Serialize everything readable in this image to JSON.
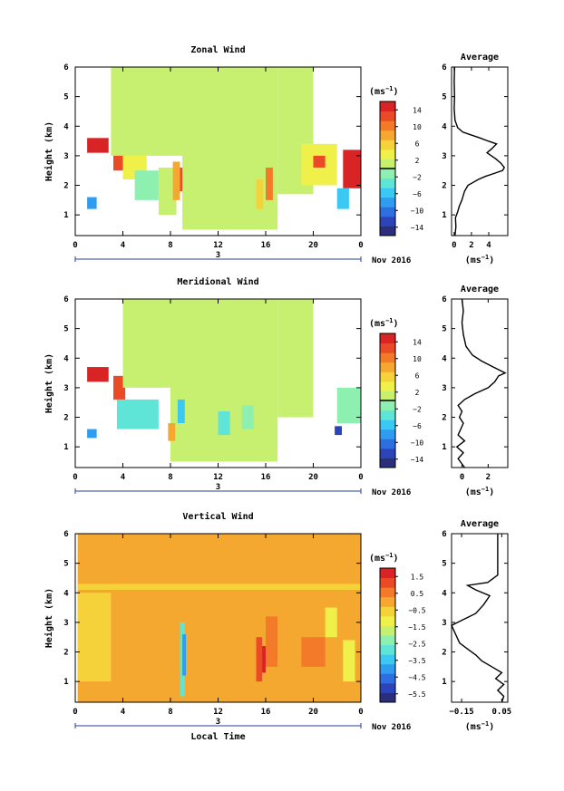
{
  "chart_data": [
    {
      "type": "heatmap",
      "title": "Zonal Wind",
      "ylabel": "Height (km)",
      "xlabel": "",
      "x_ticks": [
        "0",
        "4",
        "8",
        "12",
        "16",
        "20",
        "0"
      ],
      "y_ticks": [
        "1",
        "2",
        "3",
        "4",
        "5",
        "6"
      ],
      "xlim": [
        0,
        24
      ],
      "ylim": [
        0.3,
        6
      ],
      "date_day": "3",
      "date_label": "Nov 2016",
      "colorbar": {
        "unit_label": "(ms",
        "unit_sup": "−1",
        "unit_close": ")",
        "ticks": [
          "14",
          "10",
          "6",
          "2",
          "−2",
          "−6",
          "−10",
          "−14"
        ],
        "range": [
          -16,
          16
        ],
        "divider": 0
      },
      "profile": {
        "title": "Average",
        "x_ticks": [
          "0",
          "2",
          "4"
        ],
        "xlim": [
          -0.3,
          6.2
        ],
        "y_ticks": [
          "1",
          "2",
          "3",
          "4",
          "5",
          "6"
        ],
        "xunit": "(ms",
        "xunit_sup": "−1",
        "xunit_close": ")",
        "points": [
          [
            0.1,
            0.3
          ],
          [
            0.2,
            0.6
          ],
          [
            0.15,
            0.9
          ],
          [
            0.4,
            1.1
          ],
          [
            0.6,
            1.3
          ],
          [
            0.9,
            1.5
          ],
          [
            1.2,
            1.8
          ],
          [
            1.6,
            2.0
          ],
          [
            2.2,
            2.1
          ],
          [
            2.8,
            2.2
          ],
          [
            3.6,
            2.3
          ],
          [
            4.6,
            2.4
          ],
          [
            5.6,
            2.5
          ],
          [
            5.8,
            2.6
          ],
          [
            5.4,
            2.75
          ],
          [
            4.8,
            2.9
          ],
          [
            4.3,
            3.0
          ],
          [
            3.8,
            3.1
          ],
          [
            4.4,
            3.25
          ],
          [
            4.9,
            3.4
          ],
          [
            3.9,
            3.5
          ],
          [
            3.0,
            3.6
          ],
          [
            2.0,
            3.7
          ],
          [
            1.0,
            3.8
          ],
          [
            0.4,
            3.95
          ],
          [
            0.1,
            4.2
          ],
          [
            0.0,
            4.6
          ],
          [
            0.05,
            5.0
          ],
          [
            0.0,
            5.5
          ],
          [
            0.05,
            6.0
          ]
        ]
      },
      "cells": [
        {
          "x0": 1,
          "x1": 2.8,
          "y0": 3.1,
          "y1": 3.6,
          "v": 14
        },
        {
          "x0": 3.2,
          "x1": 4.2,
          "y0": 2.5,
          "y1": 3.4,
          "v": 12
        },
        {
          "x0": 4,
          "x1": 6,
          "y0": 2.2,
          "y1": 3.0,
          "v": 3
        },
        {
          "x0": 5,
          "x1": 7,
          "y0": 1.5,
          "y1": 2.5,
          "v": -1
        },
        {
          "x0": 7,
          "x1": 8.5,
          "y0": 1.0,
          "y1": 2.6,
          "v": 1
        },
        {
          "x0": 8.2,
          "x1": 8.8,
          "y0": 1.5,
          "y1": 2.8,
          "v": 9
        },
        {
          "x0": 8.8,
          "x1": 9.3,
          "y0": 1.8,
          "y1": 2.6,
          "v": 13
        },
        {
          "x0": 3,
          "x1": 12,
          "y0": 3.0,
          "y1": 6.0,
          "v": 0
        },
        {
          "x0": 9,
          "x1": 17,
          "y0": 0.5,
          "y1": 6.0,
          "v": 0
        },
        {
          "x0": 17,
          "x1": 20,
          "y0": 1.7,
          "y1": 6.0,
          "v": 0
        },
        {
          "x0": 15.2,
          "x1": 15.8,
          "y0": 1.2,
          "y1": 2.2,
          "v": 6
        },
        {
          "x0": 16,
          "x1": 16.6,
          "y0": 1.5,
          "y1": 2.6,
          "v": 11
        },
        {
          "x0": 1,
          "x1": 1.8,
          "y0": 1.2,
          "y1": 1.6,
          "v": -7
        },
        {
          "x0": 22.5,
          "x1": 24,
          "y0": 1.9,
          "y1": 3.2,
          "v": 14
        },
        {
          "x0": 22,
          "x1": 23,
          "y0": 1.2,
          "y1": 1.9,
          "v": -6
        },
        {
          "x0": 19,
          "x1": 22,
          "y0": 2.0,
          "y1": 3.4,
          "v": 4
        },
        {
          "x0": 20,
          "x1": 21,
          "y0": 2.6,
          "y1": 3.0,
          "v": 13
        }
      ]
    },
    {
      "type": "heatmap",
      "title": "Meridional Wind",
      "ylabel": "Height (km)",
      "xlabel": "",
      "x_ticks": [
        "0",
        "4",
        "8",
        "12",
        "16",
        "20",
        "0"
      ],
      "y_ticks": [
        "1",
        "2",
        "3",
        "4",
        "5",
        "6"
      ],
      "xlim": [
        0,
        24
      ],
      "ylim": [
        0.3,
        6
      ],
      "date_day": "3",
      "date_label": "Nov 2016",
      "colorbar": {
        "unit_label": "(ms",
        "unit_sup": "−1",
        "unit_close": ")",
        "ticks": [
          "14",
          "10",
          "6",
          "2",
          "−2",
          "−6",
          "−10",
          "−14"
        ],
        "range": [
          -16,
          16
        ],
        "divider": 0
      },
      "profile": {
        "title": "Average",
        "x_ticks": [
          "0",
          "2"
        ],
        "xlim": [
          -0.8,
          3.5
        ],
        "y_ticks": [
          "1",
          "2",
          "3",
          "4",
          "5",
          "6"
        ],
        "xunit": "(ms",
        "xunit_sup": "−1",
        "xunit_close": ")",
        "points": [
          [
            0.2,
            0.3
          ],
          [
            -0.3,
            0.6
          ],
          [
            0.1,
            0.8
          ],
          [
            -0.4,
            1.0
          ],
          [
            0.2,
            1.2
          ],
          [
            -0.3,
            1.4
          ],
          [
            -0.1,
            1.6
          ],
          [
            0.1,
            1.8
          ],
          [
            -0.2,
            2.0
          ],
          [
            0.0,
            2.2
          ],
          [
            -0.3,
            2.4
          ],
          [
            0.2,
            2.6
          ],
          [
            1.0,
            2.8
          ],
          [
            2.0,
            3.0
          ],
          [
            2.5,
            3.2
          ],
          [
            2.8,
            3.4
          ],
          [
            3.3,
            3.5
          ],
          [
            2.4,
            3.7
          ],
          [
            1.5,
            3.9
          ],
          [
            0.8,
            4.1
          ],
          [
            0.3,
            4.4
          ],
          [
            0.1,
            4.8
          ],
          [
            0.0,
            5.2
          ],
          [
            0.1,
            5.6
          ],
          [
            0.0,
            6.0
          ]
        ]
      },
      "cells": [
        {
          "x0": 1,
          "x1": 2.8,
          "y0": 3.2,
          "y1": 3.7,
          "v": 14
        },
        {
          "x0": 3.2,
          "x1": 4.2,
          "y0": 2.6,
          "y1": 3.4,
          "v": 12
        },
        {
          "x0": 3.5,
          "x1": 7,
          "y0": 1.6,
          "y1": 2.6,
          "v": -3
        },
        {
          "x0": 4,
          "x1": 12,
          "y0": 3.0,
          "y1": 6.0,
          "v": 0
        },
        {
          "x0": 8,
          "x1": 17,
          "y0": 0.5,
          "y1": 6.0,
          "v": 0
        },
        {
          "x0": 17,
          "x1": 20,
          "y0": 2.0,
          "y1": 6.0,
          "v": 0
        },
        {
          "x0": 7.8,
          "x1": 8.4,
          "y0": 1.2,
          "y1": 1.8,
          "v": 8
        },
        {
          "x0": 8.6,
          "x1": 9.2,
          "y0": 1.8,
          "y1": 2.6,
          "v": -5
        },
        {
          "x0": 12,
          "x1": 13,
          "y0": 1.4,
          "y1": 2.2,
          "v": -3
        },
        {
          "x0": 14,
          "x1": 15,
          "y0": 1.6,
          "y1": 2.4,
          "v": -2
        },
        {
          "x0": 1,
          "x1": 1.8,
          "y0": 1.3,
          "y1": 1.6,
          "v": -7
        },
        {
          "x0": 22,
          "x1": 24,
          "y0": 1.8,
          "y1": 3.0,
          "v": -2
        },
        {
          "x0": 21.8,
          "x1": 22.4,
          "y0": 1.4,
          "y1": 1.7,
          "v": -12
        }
      ]
    },
    {
      "type": "heatmap",
      "title": "Vertical Wind",
      "ylabel": "Height (km)",
      "xlabel": "Local Time",
      "x_ticks": [
        "0",
        "4",
        "8",
        "12",
        "16",
        "20",
        "0"
      ],
      "y_ticks": [
        "1",
        "2",
        "3",
        "4",
        "5",
        "6"
      ],
      "xlim": [
        0,
        24
      ],
      "ylim": [
        0.3,
        6
      ],
      "date_day": "3",
      "date_label": "Nov 2016",
      "colorbar": {
        "unit_label": "(ms",
        "unit_sup": "−1",
        "unit_close": ")",
        "ticks": [
          "1.5",
          "0.5",
          "−0.5",
          "−1.5",
          "−2.5",
          "−3.5",
          "−4.5",
          "−5.5"
        ],
        "range": [
          -6,
          2
        ],
        "divider": null
      },
      "profile": {
        "title": "Average",
        "x_ticks": [
          "−0.15",
          "0.05"
        ],
        "xlim": [
          -0.2,
          0.08
        ],
        "y_ticks": [
          "1",
          "2",
          "3",
          "4",
          "5",
          "6"
        ],
        "xunit": "(ms",
        "xunit_sup": "−1",
        "xunit_close": ")",
        "points": [
          [
            0.05,
            0.3
          ],
          [
            0.06,
            0.5
          ],
          [
            0.03,
            0.7
          ],
          [
            0.06,
            0.9
          ],
          [
            0.02,
            1.1
          ],
          [
            0.05,
            1.3
          ],
          [
            0.0,
            1.5
          ],
          [
            -0.05,
            1.7
          ],
          [
            -0.08,
            1.9
          ],
          [
            -0.12,
            2.1
          ],
          [
            -0.16,
            2.3
          ],
          [
            -0.18,
            2.6
          ],
          [
            -0.2,
            2.9
          ],
          [
            -0.14,
            3.1
          ],
          [
            -0.08,
            3.3
          ],
          [
            -0.04,
            3.6
          ],
          [
            -0.01,
            3.9
          ],
          [
            -0.08,
            4.1
          ],
          [
            -0.12,
            4.25
          ],
          [
            -0.02,
            4.35
          ],
          [
            0.03,
            4.6
          ],
          [
            0.03,
            5.0
          ],
          [
            0.03,
            5.5
          ],
          [
            0.03,
            6.0
          ]
        ]
      },
      "cells": [
        {
          "x0": 0.2,
          "x1": 24,
          "y0": 0.3,
          "y1": 6.0,
          "v": 0.2
        },
        {
          "x0": 0.2,
          "x1": 3,
          "y0": 1.0,
          "y1": 4.0,
          "v": -0.3
        },
        {
          "x0": 5,
          "x1": 9,
          "y0": 1.0,
          "y1": 3.4,
          "v": -0.2
        },
        {
          "x0": 8.8,
          "x1": 9.2,
          "y0": 0.5,
          "y1": 3.0,
          "v": -3.0
        },
        {
          "x0": 9.0,
          "x1": 9.3,
          "y0": 1.2,
          "y1": 2.6,
          "v": -4.2
        },
        {
          "x0": 15.2,
          "x1": 15.7,
          "y0": 1.0,
          "y1": 2.5,
          "v": 1.3
        },
        {
          "x0": 15.7,
          "x1": 16.0,
          "y0": 1.3,
          "y1": 2.2,
          "v": 1.6
        },
        {
          "x0": 16,
          "x1": 17,
          "y0": 1.5,
          "y1": 3.2,
          "v": 0.8
        },
        {
          "x0": 19,
          "x1": 21,
          "y0": 1.5,
          "y1": 2.5,
          "v": 0.6
        },
        {
          "x0": 21,
          "x1": 22,
          "y0": 2.5,
          "y1": 3.5,
          "v": -1.0
        },
        {
          "x0": 22.5,
          "x1": 23.5,
          "y0": 1.0,
          "y1": 2.4,
          "v": -1.2
        },
        {
          "x0": 0.2,
          "x1": 24,
          "y0": 4.1,
          "y1": 4.3,
          "v": -0.5
        }
      ]
    }
  ]
}
